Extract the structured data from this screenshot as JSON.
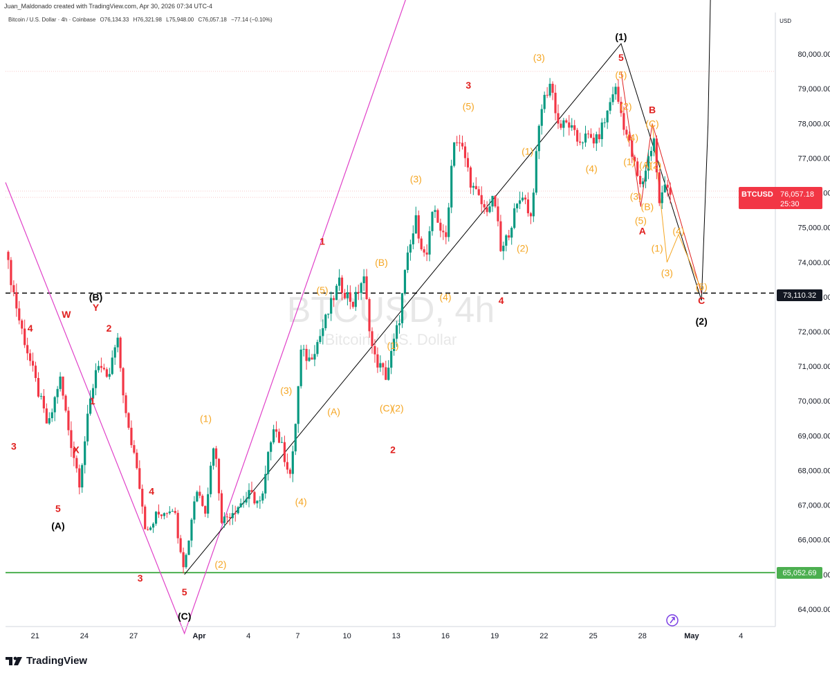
{
  "header": {
    "credit": "Juan_Maldonado created with TradingView.com, Apr 30, 2026 07:34 UTC-4",
    "symbol": "Bitcoin / U.S. Dollar · 4h · Coinbase",
    "open": "O76,134.33",
    "high": "H76,321.98",
    "low": "L75,948.00",
    "close": "C76,057.18",
    "change": "−77.14 (−0.10%)",
    "currency": "USD"
  },
  "watermark": {
    "ticker": "BTCUSD, 4h",
    "name": "Bitcoin / U.S. Dollar"
  },
  "footer": {
    "brand": "TradingView"
  },
  "price_badge": {
    "ticker": "BTCUSD",
    "price": "76,057.18",
    "countdown": "25:30"
  },
  "levels": {
    "resistance_label": "73,110.32",
    "support_label": "65,052.69"
  },
  "colors": {
    "up": "#089981",
    "down": "#f23645",
    "wave_orange": "#f5a623",
    "wave_red": "#e0201f",
    "wave_black": "#000000",
    "channel_magenta": "#e040c8",
    "support_green": "#4caf50",
    "price_red": "#f23645"
  },
  "chart_data": {
    "type": "candlestick",
    "timeframe": "4h",
    "ylim": [
      63500,
      80800
    ],
    "y_ticks": [
      "64,000.00",
      "65,000.00",
      "66,000.00",
      "67,000.00",
      "68,000.00",
      "69,000.00",
      "70,000.00",
      "71,000.00",
      "72,000.00",
      "73,000.00",
      "74,000.00",
      "75,000.00",
      "76,000.00",
      "77,000.00",
      "78,000.00",
      "79,000.00",
      "80,000.00"
    ],
    "y_tick_values": [
      64000,
      65000,
      66000,
      67000,
      68000,
      69000,
      70000,
      71000,
      72000,
      73000,
      74000,
      75000,
      76000,
      77000,
      78000,
      79000,
      80000
    ],
    "x_ticks": [
      "21",
      "24",
      "27",
      "Apr",
      "4",
      "7",
      "10",
      "13",
      "16",
      "19",
      "22",
      "25",
      "28",
      "May",
      "4"
    ],
    "x_range_days": [
      -11.8,
      35.1
    ],
    "x_tick_days": [
      -10,
      -7,
      -4,
      0,
      3,
      6,
      9,
      12,
      15,
      18,
      21,
      24,
      27,
      30,
      33
    ],
    "horizontal_lines": [
      {
        "price": 73110.32,
        "style": "dashed",
        "color": "#000000"
      },
      {
        "price": 65052.69,
        "style": "solid",
        "color": "#4caf50"
      }
    ],
    "price_path": [
      [
        -11.8,
        74300
      ],
      [
        -11.0,
        72400
      ],
      [
        -10.0,
        70600
      ],
      [
        -9.2,
        69200
      ],
      [
        -8.5,
        70700
      ],
      [
        -7.9,
        69000
      ],
      [
        -7.3,
        67700
      ],
      [
        -6.7,
        69800
      ],
      [
        -6.2,
        71200
      ],
      [
        -5.6,
        70500
      ],
      [
        -5.0,
        71800
      ],
      [
        -4.4,
        69300
      ],
      [
        -3.8,
        68200
      ],
      [
        -3.2,
        66100
      ],
      [
        -2.6,
        66700
      ],
      [
        -1.6,
        67000
      ],
      [
        -0.9,
        65200
      ],
      [
        -0.2,
        67500
      ],
      [
        0.4,
        66900
      ],
      [
        0.9,
        68900
      ],
      [
        1.4,
        66500
      ],
      [
        1.9,
        66800
      ],
      [
        2.4,
        67000
      ],
      [
        3.1,
        67300
      ],
      [
        3.8,
        67000
      ],
      [
        4.5,
        69400
      ],
      [
        5.0,
        68700
      ],
      [
        5.6,
        67800
      ],
      [
        6.2,
        71400
      ],
      [
        6.7,
        71200
      ],
      [
        7.3,
        71800
      ],
      [
        7.9,
        72600
      ],
      [
        8.5,
        73400
      ],
      [
        9.4,
        72800
      ],
      [
        10.0,
        73600
      ],
      [
        10.6,
        71300
      ],
      [
        11.4,
        70700
      ],
      [
        12.2,
        72400
      ],
      [
        12.6,
        73900
      ],
      [
        13.2,
        75200
      ],
      [
        13.8,
        74000
      ],
      [
        14.3,
        75600
      ],
      [
        15.0,
        74500
      ],
      [
        15.5,
        77600
      ],
      [
        16.1,
        77200
      ],
      [
        16.6,
        76200
      ],
      [
        17.4,
        75500
      ],
      [
        18.0,
        75800
      ],
      [
        18.4,
        74200
      ],
      [
        19.2,
        75400
      ],
      [
        19.7,
        76000
      ],
      [
        20.2,
        75300
      ],
      [
        20.8,
        78400
      ],
      [
        21.4,
        79200
      ],
      [
        21.9,
        77900
      ],
      [
        22.5,
        78000
      ],
      [
        23.0,
        77500
      ],
      [
        23.6,
        77600
      ],
      [
        24.2,
        77500
      ],
      [
        24.8,
        78200
      ],
      [
        25.3,
        79100
      ],
      [
        25.8,
        78100
      ],
      [
        26.3,
        77200
      ],
      [
        26.9,
        76100
      ],
      [
        27.3,
        76900
      ],
      [
        27.7,
        77600
      ],
      [
        28.0,
        75700
      ],
      [
        28.4,
        76200
      ],
      [
        28.8,
        76057
      ]
    ],
    "wave_labels": [
      {
        "t": "4",
        "x": -10.3,
        "y": 72100,
        "c": "red"
      },
      {
        "t": "3",
        "x": -11.3,
        "y": 68700,
        "c": "red"
      },
      {
        "t": "W",
        "x": -8.1,
        "y": 72500,
        "c": "red"
      },
      {
        "t": "(B)",
        "x": -6.3,
        "y": 73000,
        "c": "black"
      },
      {
        "t": "Y",
        "x": -6.3,
        "y": 72700,
        "c": "red"
      },
      {
        "t": "2",
        "x": -5.5,
        "y": 72100,
        "c": "red"
      },
      {
        "t": "1",
        "x": -6.5,
        "y": 70000,
        "c": "red"
      },
      {
        "t": "X",
        "x": -7.5,
        "y": 68600,
        "c": "red"
      },
      {
        "t": "5",
        "x": -8.6,
        "y": 66900,
        "c": "red"
      },
      {
        "t": "(A)",
        "x": -8.6,
        "y": 66400,
        "c": "black"
      },
      {
        "t": "4",
        "x": -2.9,
        "y": 67400,
        "c": "red"
      },
      {
        "t": "3",
        "x": -3.6,
        "y": 64900,
        "c": "red"
      },
      {
        "t": "5",
        "x": -0.9,
        "y": 64500,
        "c": "red"
      },
      {
        "t": "(C)",
        "x": -0.9,
        "y": 63800,
        "c": "black"
      },
      {
        "t": "(1)",
        "x": 0.4,
        "y": 69500,
        "c": "orange"
      },
      {
        "t": "(2)",
        "x": 1.3,
        "y": 65300,
        "c": "orange"
      },
      {
        "t": "(3)",
        "x": 5.3,
        "y": 70300,
        "c": "orange"
      },
      {
        "t": "(4)",
        "x": 6.2,
        "y": 67100,
        "c": "orange"
      },
      {
        "t": "(5)",
        "x": 7.5,
        "y": 73200,
        "c": "orange"
      },
      {
        "t": "1",
        "x": 7.5,
        "y": 74600,
        "c": "red"
      },
      {
        "t": "(A)",
        "x": 8.2,
        "y": 69700,
        "c": "orange"
      },
      {
        "t": "(B)",
        "x": 11.1,
        "y": 74000,
        "c": "orange"
      },
      {
        "t": "(1)",
        "x": 11.8,
        "y": 71600,
        "c": "orange"
      },
      {
        "t": "(C)",
        "x": 11.4,
        "y": 69800,
        "c": "orange"
      },
      {
        "t": "(2)",
        "x": 12.1,
        "y": 69800,
        "c": "orange"
      },
      {
        "t": "2",
        "x": 11.8,
        "y": 68600,
        "c": "red"
      },
      {
        "t": "(3)",
        "x": 13.2,
        "y": 76400,
        "c": "orange"
      },
      {
        "t": "(4)",
        "x": 15.0,
        "y": 73000,
        "c": "orange"
      },
      {
        "t": "(5)",
        "x": 16.4,
        "y": 78500,
        "c": "orange"
      },
      {
        "t": "3",
        "x": 16.4,
        "y": 79100,
        "c": "red"
      },
      {
        "t": "4",
        "x": 18.4,
        "y": 72900,
        "c": "red"
      },
      {
        "t": "(1)",
        "x": 20.0,
        "y": 77200,
        "c": "orange"
      },
      {
        "t": "(2)",
        "x": 19.7,
        "y": 74400,
        "c": "orange"
      },
      {
        "t": "(3)",
        "x": 20.7,
        "y": 79900,
        "c": "orange"
      },
      {
        "t": "(4)",
        "x": 23.9,
        "y": 76700,
        "c": "orange"
      },
      {
        "t": "(5)",
        "x": 25.7,
        "y": 79400,
        "c": "orange"
      },
      {
        "t": "5",
        "x": 25.7,
        "y": 79900,
        "c": "red"
      },
      {
        "t": "(1)",
        "x": 25.7,
        "y": 80500,
        "c": "black"
      },
      {
        "t": "(2)",
        "x": 26.0,
        "y": 78500,
        "c": "orange"
      },
      {
        "t": "(4)",
        "x": 26.4,
        "y": 77600,
        "c": "orange"
      },
      {
        "t": "(1)",
        "x": 26.2,
        "y": 76900,
        "c": "orange"
      },
      {
        "t": "(3)",
        "x": 26.6,
        "y": 75900,
        "c": "orange"
      },
      {
        "t": "(A)",
        "x": 27.2,
        "y": 76800,
        "c": "orange"
      },
      {
        "t": "(2)",
        "x": 27.8,
        "y": 76800,
        "c": "orange"
      },
      {
        "t": "(5)",
        "x": 26.9,
        "y": 75200,
        "c": "orange"
      },
      {
        "t": "A",
        "x": 27.0,
        "y": 74900,
        "c": "red"
      },
      {
        "t": "(B)",
        "x": 27.3,
        "y": 75600,
        "c": "orange"
      },
      {
        "t": "B",
        "x": 27.6,
        "y": 78400,
        "c": "red"
      },
      {
        "t": "(C)",
        "x": 27.6,
        "y": 78000,
        "c": "orange"
      },
      {
        "t": "(1)",
        "x": 27.9,
        "y": 74400,
        "c": "orange"
      },
      {
        "t": "(4)",
        "x": 29.2,
        "y": 74900,
        "c": "orange"
      },
      {
        "t": "(3)",
        "x": 28.5,
        "y": 73700,
        "c": "orange"
      },
      {
        "t": "(5)",
        "x": 30.6,
        "y": 73300,
        "c": "orange"
      },
      {
        "t": "C",
        "x": 30.6,
        "y": 72900,
        "c": "red"
      },
      {
        "t": "(2)",
        "x": 30.6,
        "y": 72300,
        "c": "black"
      }
    ]
  }
}
